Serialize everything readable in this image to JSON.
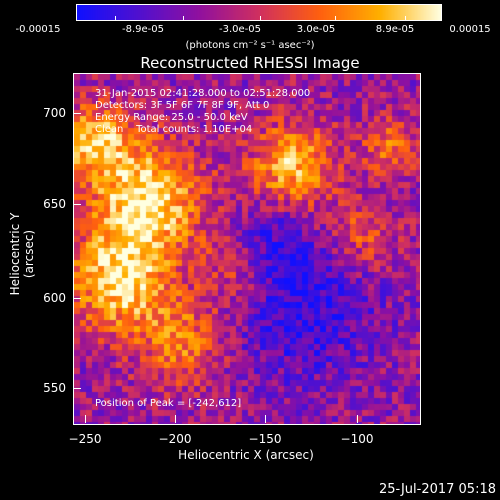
{
  "colorbar": {
    "ticks": [
      "-0.00015",
      "-8.9e-05",
      "-3.0e-05",
      "3.0e-05",
      "8.9e-05",
      "0.00015"
    ],
    "units": "(photons cm⁻² s⁻¹ asec⁻²)",
    "colors": [
      "#1010ff",
      "#5010d0",
      "#9010a0",
      "#d03060",
      "#ff6010",
      "#ffb000",
      "#ffffe0"
    ]
  },
  "plot": {
    "title": "Reconstructed RHESSI Image",
    "info_lines": [
      "31-Jan-2015 02:41:28.000 to 02:51:28.000",
      "Detectors: 3F 5F 6F 7F 8F 9F, Att 0",
      "Energy Range: 25.0 - 50.0 keV",
      "Clean    Total counts: 1.10E+04"
    ],
    "peak_text": "Position of Peak = [-242,612]",
    "xlabel": "Heliocentric X (arcsec)",
    "ylabel": "Heliocentric Y (arcsec)",
    "xticks": [
      "−250",
      "−200",
      "−150",
      "−100"
    ],
    "yticks": [
      "700",
      "650",
      "600",
      "550"
    ]
  },
  "chart_data": {
    "type": "heatmap",
    "title": "Reconstructed RHESSI Image",
    "xlabel": "Heliocentric X (arcsec)",
    "ylabel": "Heliocentric Y (arcsec)",
    "xlim": [
      -252,
      -64
    ],
    "ylim": [
      529,
      722
    ],
    "colorbar_range": [
      -0.00015,
      0.00015
    ],
    "peak_position": [
      -242,
      612
    ]
  },
  "timestamp": "25-Jul-2017 05:18"
}
